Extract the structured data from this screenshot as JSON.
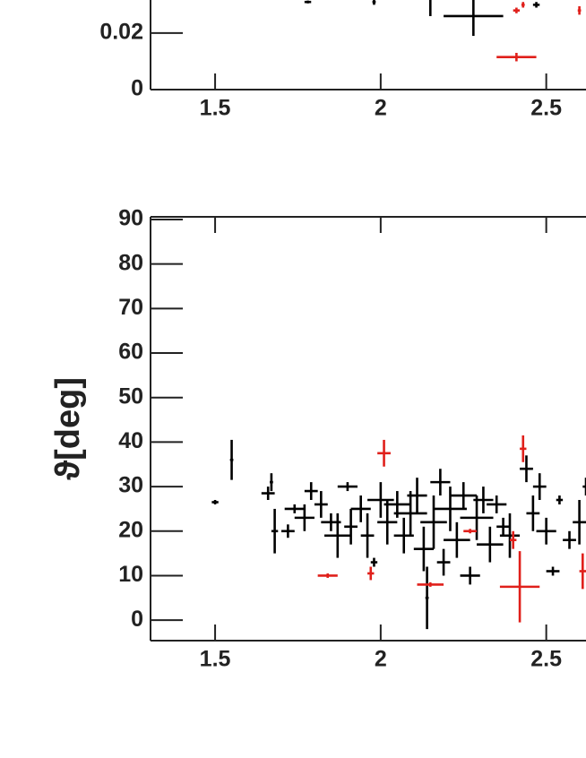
{
  "chart_data": [
    {
      "type": "scatter",
      "xlim": [
        1.305,
        2.62
      ],
      "xticks": [
        1.5,
        2,
        2.5
      ],
      "ylim": [
        0,
        0.0317
      ],
      "yticks": [
        0,
        0.02
      ],
      "series": [
        {
          "color": "#000000",
          "x": [
            1.78,
            1.98,
            2.15,
            2.28,
            2.47
          ],
          "values": [
            0.031,
            0.031,
            0.029,
            0.026,
            0.03
          ],
          "xerr": [
            0.01,
            0.005,
            0.003,
            0.09,
            0.01
          ],
          "yerr": [
            0.0005,
            0.001,
            0.003,
            0.007,
            0.001
          ]
        },
        {
          "color": "#e0201b",
          "x": [
            2.41,
            2.43,
            2.41,
            2.6
          ],
          "values": [
            0.028,
            0.03,
            0.0115,
            0.028
          ],
          "xerr": [
            0.01,
            0.005,
            0.06,
            0.005
          ],
          "yerr": [
            0.001,
            0.001,
            0.0015,
            0.0015
          ]
        }
      ]
    },
    {
      "type": "scatter",
      "ylabel": "ϑ[deg]",
      "xlim": [
        1.305,
        2.62
      ],
      "xticks": [
        1.5,
        2,
        2.5
      ],
      "ylim": [
        -4.6,
        90.6
      ],
      "yticks": [
        0,
        10,
        20,
        30,
        40,
        50,
        60,
        70,
        80,
        90
      ],
      "series": [
        {
          "color": "#000000",
          "x": [
            1.5,
            1.55,
            1.66,
            1.67,
            1.68,
            1.72,
            1.74,
            1.77,
            1.79,
            1.82,
            1.85,
            1.87,
            1.9,
            1.91,
            1.94,
            1.96,
            1.98,
            2.0,
            2.02,
            2.05,
            2.07,
            2.09,
            2.11,
            2.13,
            2.14,
            2.16,
            2.18,
            2.19,
            2.21,
            2.23,
            2.25,
            2.27,
            2.29,
            2.31,
            2.33,
            2.35,
            2.37,
            2.39,
            2.44,
            2.46,
            2.48,
            2.5,
            2.52,
            2.54,
            2.57,
            2.6,
            2.62
          ],
          "values": [
            26.5,
            36,
            28.5,
            31,
            20,
            20,
            25,
            23,
            29,
            26,
            22,
            19,
            30,
            21,
            25,
            19,
            13,
            27,
            22,
            26,
            19,
            24,
            28,
            16,
            5,
            22,
            31,
            13,
            25,
            18,
            28,
            10,
            23,
            27,
            17,
            26,
            21,
            19,
            34,
            24,
            30,
            20,
            11,
            27,
            18,
            22,
            30
          ],
          "xerr": [
            0.01,
            0.005,
            0.02,
            0.005,
            0.01,
            0.02,
            0.03,
            0.03,
            0.02,
            0.02,
            0.03,
            0.04,
            0.03,
            0.02,
            0.03,
            0.02,
            0.01,
            0.04,
            0.03,
            0.04,
            0.03,
            0.05,
            0.03,
            0.03,
            0.005,
            0.04,
            0.03,
            0.02,
            0.05,
            0.04,
            0.04,
            0.03,
            0.05,
            0.03,
            0.04,
            0.03,
            0.02,
            0.03,
            0.02,
            0.02,
            0.02,
            0.03,
            0.02,
            0.01,
            0.02,
            0.02,
            0.01
          ],
          "yerr": [
            0.5,
            4.5,
            1.5,
            2,
            5,
            1.5,
            1,
            3,
            2,
            3,
            2,
            5,
            1,
            4,
            3,
            5,
            1,
            4,
            5,
            3,
            4,
            5,
            4,
            5,
            7,
            6,
            3,
            3,
            5,
            4,
            3,
            2,
            5,
            3,
            4,
            2,
            2,
            5,
            3,
            4,
            3,
            3,
            1,
            1,
            2,
            5,
            2
          ]
        },
        {
          "color": "#e0201b",
          "x": [
            1.84,
            1.97,
            2.01,
            2.15,
            2.27,
            2.4,
            2.42,
            2.43,
            2.61
          ],
          "values": [
            10,
            10.5,
            37.5,
            8,
            20,
            18,
            7.5,
            38.5,
            11
          ],
          "xerr": [
            0.03,
            0.01,
            0.02,
            0.04,
            0.02,
            0.01,
            0.06,
            0.01,
            0.01
          ],
          "yerr": [
            0.5,
            1.5,
            3,
            0.5,
            0.5,
            2,
            8,
            3,
            4
          ]
        }
      ]
    }
  ]
}
